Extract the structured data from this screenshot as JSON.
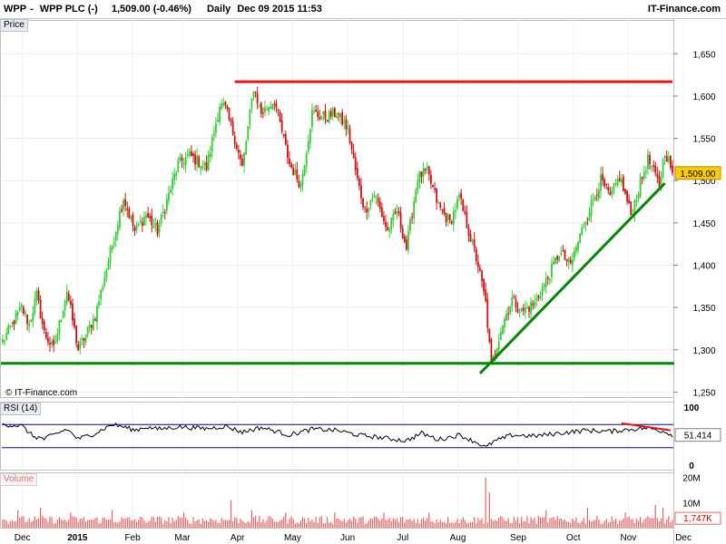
{
  "header": {
    "symbol": "WPP",
    "name": "WPP PLC (-)",
    "quote": "1,509.00 (-0.46%)",
    "interval": "Daily",
    "datetime": "Dec 09 2015 11:53",
    "brand": "IT-Finance.com"
  },
  "watermark": "© IT-Finance.com",
  "colors": {
    "up": "#33cc33",
    "down": "#cc1111",
    "support": "#008800",
    "resistance": "#ee1111",
    "rsi_line": "#000000",
    "rsi_band": "#000088",
    "volume": "#e06666"
  },
  "chart_data": [
    {
      "type": "candlestick",
      "title": "Price",
      "months": [
        "Dec",
        "2015",
        "Feb",
        "Mar",
        "Apr",
        "May",
        "Jun",
        "Jul",
        "Aug",
        "Sep",
        "Oct",
        "Nov",
        "Dec"
      ],
      "y_ticks": [
        "1,650",
        "1,600",
        "1,550",
        "1,500",
        "1,450",
        "1,400",
        "1,350",
        "1,300",
        "1,250"
      ],
      "ylim": [
        1244,
        1690
      ],
      "last_price_label": "1,509.00",
      "last_price": 1509,
      "waypoints": [
        [
          0,
          1310
        ],
        [
          10,
          1350
        ],
        [
          14,
          1330
        ],
        [
          18,
          1365
        ],
        [
          22,
          1320
        ],
        [
          27,
          1300
        ],
        [
          34,
          1370
        ],
        [
          40,
          1300
        ],
        [
          49,
          1340
        ],
        [
          64,
          1480
        ],
        [
          70,
          1440
        ],
        [
          76,
          1460
        ],
        [
          82,
          1440
        ],
        [
          93,
          1520
        ],
        [
          99,
          1530
        ],
        [
          108,
          1515
        ],
        [
          115,
          1590
        ],
        [
          118,
          1585
        ],
        [
          123,
          1550
        ],
        [
          127,
          1515
        ],
        [
          133,
          1610
        ],
        [
          137,
          1580
        ],
        [
          144,
          1595
        ],
        [
          152,
          1520
        ],
        [
          158,
          1495
        ],
        [
          164,
          1580
        ],
        [
          171,
          1575
        ],
        [
          177,
          1580
        ],
        [
          183,
          1560
        ],
        [
          188,
          1500
        ],
        [
          192,
          1465
        ],
        [
          197,
          1485
        ],
        [
          204,
          1440
        ],
        [
          209,
          1465
        ],
        [
          214,
          1420
        ],
        [
          220,
          1505
        ],
        [
          225,
          1510
        ],
        [
          231,
          1470
        ],
        [
          237,
          1450
        ],
        [
          242,
          1480
        ],
        [
          247,
          1440
        ],
        [
          252,
          1400
        ],
        [
          256,
          1355
        ],
        [
          259,
          1280
        ],
        [
          264,
          1325
        ],
        [
          270,
          1360
        ],
        [
          275,
          1345
        ],
        [
          282,
          1355
        ],
        [
          289,
          1385
        ],
        [
          295,
          1415
        ],
        [
          301,
          1400
        ],
        [
          309,
          1455
        ],
        [
          317,
          1500
        ],
        [
          322,
          1480
        ],
        [
          327,
          1505
        ],
        [
          333,
          1460
        ],
        [
          342,
          1525
        ],
        [
          348,
          1495
        ],
        [
          351,
          1535
        ],
        [
          355,
          1510
        ]
      ],
      "support_line": {
        "y": 1284,
        "from_x": 0,
        "to_x": 355
      },
      "resistance_line": {
        "y": 1617,
        "from_x": 123,
        "to_x": 355
      },
      "trend_line": {
        "from": [
          253,
          1272
        ],
        "to": [
          351,
          1497
        ]
      }
    },
    {
      "type": "line",
      "title": "RSI (14)",
      "y_ticks": [
        "100",
        "50",
        "0"
      ],
      "ylim": [
        0,
        100
      ],
      "bands": [
        30,
        70
      ],
      "last_value_label": "51.414",
      "waypoints": [
        [
          0,
          70
        ],
        [
          10,
          68
        ],
        [
          16,
          50
        ],
        [
          22,
          45
        ],
        [
          34,
          62
        ],
        [
          40,
          45
        ],
        [
          49,
          55
        ],
        [
          58,
          70
        ],
        [
          64,
          66
        ],
        [
          70,
          60
        ],
        [
          76,
          66
        ],
        [
          82,
          62
        ],
        [
          93,
          66
        ],
        [
          108,
          63
        ],
        [
          118,
          67
        ],
        [
          127,
          57
        ],
        [
          137,
          65
        ],
        [
          152,
          52
        ],
        [
          164,
          62
        ],
        [
          177,
          60
        ],
        [
          188,
          52
        ],
        [
          204,
          46
        ],
        [
          214,
          42
        ],
        [
          222,
          55
        ],
        [
          231,
          44
        ],
        [
          242,
          52
        ],
        [
          252,
          38
        ],
        [
          256,
          30
        ],
        [
          260,
          40
        ],
        [
          270,
          52
        ],
        [
          282,
          50
        ],
        [
          295,
          55
        ],
        [
          309,
          60
        ],
        [
          322,
          58
        ],
        [
          333,
          62
        ],
        [
          342,
          64
        ],
        [
          351,
          58
        ],
        [
          355,
          52
        ]
      ],
      "divergence_line": {
        "from": [
          328,
          72
        ],
        "to": [
          354,
          60
        ]
      }
    },
    {
      "type": "bar",
      "title": "Volume",
      "y_ticks": [
        "20M",
        "10M"
      ],
      "ylim": [
        0,
        22
      ],
      "last_value_label": "1,747K",
      "spikes": [
        [
          8,
          7
        ],
        [
          20,
          8
        ],
        [
          36,
          6
        ],
        [
          58,
          7
        ],
        [
          96,
          6
        ],
        [
          121,
          11
        ],
        [
          132,
          7
        ],
        [
          150,
          6
        ],
        [
          176,
          6
        ],
        [
          202,
          6
        ],
        [
          226,
          6
        ],
        [
          256,
          20
        ],
        [
          258,
          14
        ],
        [
          288,
          7
        ],
        [
          310,
          8
        ],
        [
          330,
          6
        ],
        [
          346,
          9
        ],
        [
          350,
          8
        ]
      ]
    }
  ]
}
